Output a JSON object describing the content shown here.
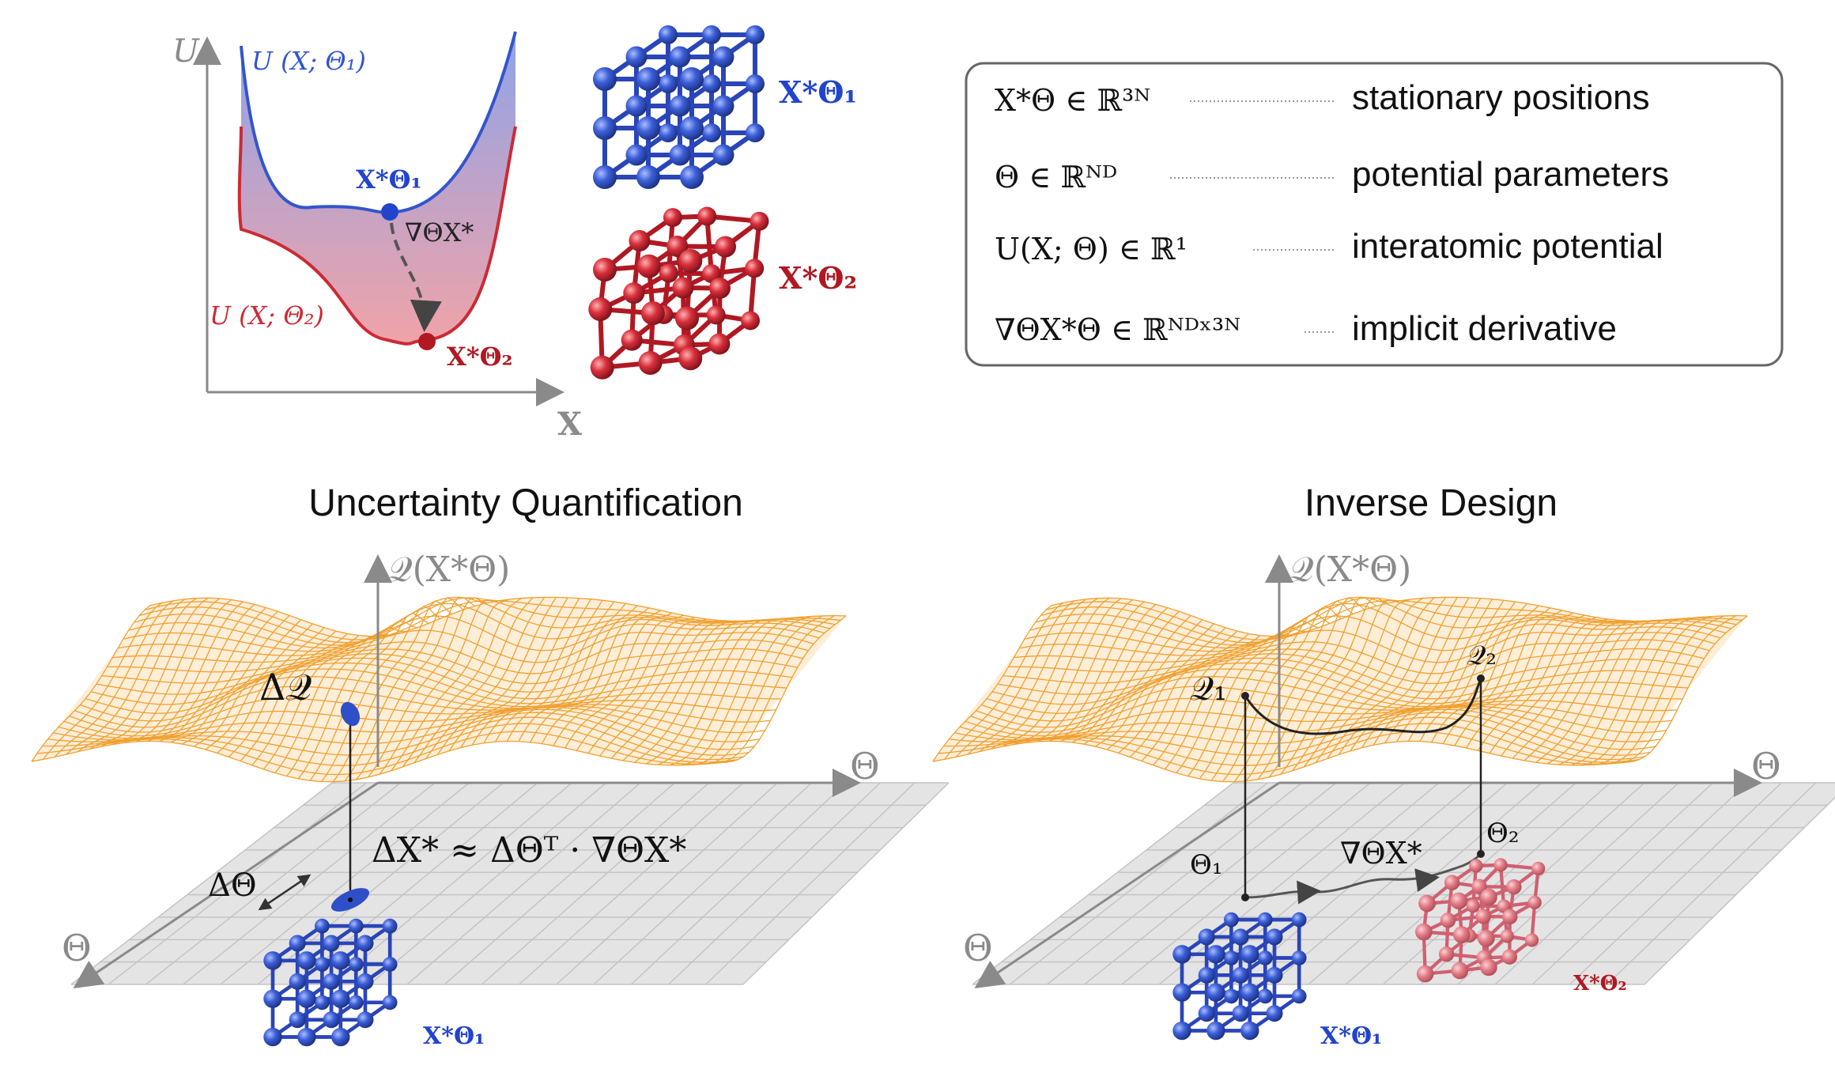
{
  "colors": {
    "blue": "#3355cc",
    "red": "#cc2a35",
    "orange": "#f3a032",
    "grid": "#cfcfcf",
    "plane": "#e6e6e6",
    "axis": "#8a8a8a",
    "dark": "#222222"
  },
  "energy_plot": {
    "y_axis_label": "U",
    "x_axis_label": "X",
    "curve1_label": "U (X; Θ₁)",
    "curve2_label": "U (X; Θ₂)",
    "min1_label": "X*Θ₁",
    "min2_label": "X*Θ₂",
    "arrow_label": "∇ΘX*"
  },
  "structures": {
    "blue_label": "X*Θ₁",
    "red_label": "X*Θ₂",
    "icon_names": [
      "blue-crystal-icon",
      "red-crystal-icon"
    ]
  },
  "legend": {
    "rows": [
      {
        "symbol": "X*Θ ∈ ℝ³ᴺ",
        "description": "stationary positions"
      },
      {
        "symbol": "Θ ∈ ℝᴺᴰ",
        "description": "potential parameters"
      },
      {
        "symbol": "U(X; Θ) ∈ ℝ¹",
        "description": "interatomic potential"
      },
      {
        "symbol": "∇ΘX*Θ ∈ ℝᴺᴰˣ³ᴺ",
        "description": "implicit derivative"
      }
    ]
  },
  "uq_panel": {
    "title": "Uncertainty Quantification",
    "vertical_axis_label": "𝒬(X*Θ)",
    "theta_axis_right": "Θ",
    "theta_axis_left": "Θ",
    "delta_q_label": "Δ𝒬",
    "delta_theta_label": "ΔΘ",
    "equation": "ΔX* ≈ ΔΘᵀ · ∇ΘX*",
    "structure_label": "X*Θ₁"
  },
  "id_panel": {
    "title": "Inverse Design",
    "vertical_axis_label": "𝒬(X*Θ)",
    "theta_axis_right": "Θ",
    "theta_axis_left": "Θ",
    "q1_label": "𝒬₁",
    "q2_label": "𝒬₂",
    "theta1_label": "Θ₁",
    "theta2_label": "Θ₂",
    "gradient_label": "∇ΘX*",
    "structure_blue_label": "X*Θ₁",
    "structure_red_label": "X*Θ₂"
  }
}
